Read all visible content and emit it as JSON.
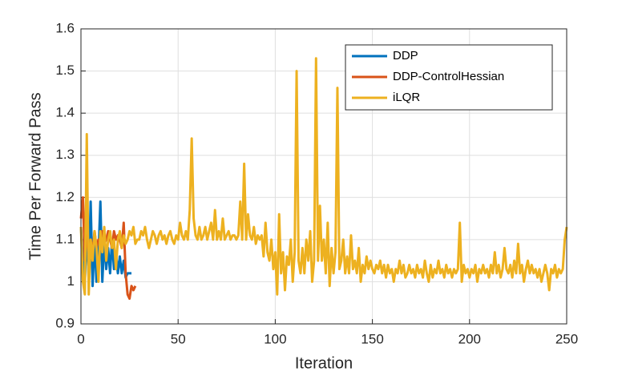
{
  "chart_data": {
    "type": "line",
    "xlabel": "Iteration",
    "ylabel": "Time Per Forward Pass",
    "xlim": [
      0,
      250
    ],
    "ylim": [
      0.9,
      1.6
    ],
    "xticks": [
      0,
      50,
      100,
      150,
      200,
      250
    ],
    "yticks": [
      0.9,
      1,
      1.1,
      1.2,
      1.3,
      1.4,
      1.5,
      1.6
    ],
    "grid": true,
    "legend": "upper right",
    "series": [
      {
        "name": "DDP",
        "color": "#0072bd",
        "x": [
          0,
          1,
          2,
          3,
          4,
          5,
          6,
          7,
          8,
          9,
          10,
          11,
          12,
          13,
          14,
          15,
          16,
          17,
          18,
          19,
          20,
          21,
          22,
          23,
          24,
          25,
          26
        ],
        "values": [
          1.13,
          1.05,
          1.0,
          1.13,
          1.0,
          1.19,
          0.99,
          1.1,
          1.0,
          1.06,
          1.19,
          1.0,
          1.1,
          1.03,
          1.08,
          1.02,
          1.1,
          1.03,
          1.07,
          1.02,
          1.06,
          1.02,
          1.05,
          1.01,
          1.02,
          1.02,
          1.02
        ]
      },
      {
        "name": "DDP-ControlHessian",
        "color": "#d95319",
        "x": [
          0,
          1,
          2,
          3,
          4,
          5,
          6,
          7,
          8,
          9,
          10,
          11,
          12,
          13,
          14,
          15,
          16,
          17,
          18,
          19,
          20,
          21,
          22,
          23,
          24,
          25,
          26,
          27,
          28
        ],
        "values": [
          1.15,
          1.2,
          1.05,
          1.12,
          1.08,
          1.1,
          1.07,
          1.12,
          1.08,
          1.1,
          1.1,
          1.12,
          1.09,
          1.1,
          1.12,
          1.1,
          1.08,
          1.12,
          1.1,
          1.11,
          1.1,
          1.08,
          1.14,
          1.02,
          0.97,
          0.96,
          0.99,
          0.98,
          0.99
        ]
      },
      {
        "name": "iLQR",
        "color": "#edb120",
        "x": [
          0,
          1,
          2,
          3,
          4,
          5,
          6,
          7,
          8,
          9,
          10,
          11,
          12,
          13,
          14,
          15,
          16,
          17,
          18,
          19,
          20,
          21,
          22,
          23,
          24,
          25,
          26,
          27,
          28,
          29,
          30,
          31,
          32,
          33,
          34,
          35,
          36,
          37,
          38,
          39,
          40,
          41,
          42,
          43,
          44,
          45,
          46,
          47,
          48,
          49,
          50,
          51,
          52,
          53,
          54,
          55,
          56,
          57,
          58,
          59,
          60,
          61,
          62,
          63,
          64,
          65,
          66,
          67,
          68,
          69,
          70,
          71,
          72,
          73,
          74,
          75,
          76,
          77,
          78,
          79,
          80,
          81,
          82,
          83,
          84,
          85,
          86,
          87,
          88,
          89,
          90,
          91,
          92,
          93,
          94,
          95,
          96,
          97,
          98,
          99,
          100,
          101,
          102,
          103,
          104,
          105,
          106,
          107,
          108,
          109,
          110,
          111,
          112,
          113,
          114,
          115,
          116,
          117,
          118,
          119,
          120,
          121,
          122,
          123,
          124,
          125,
          126,
          127,
          128,
          129,
          130,
          131,
          132,
          133,
          134,
          135,
          136,
          137,
          138,
          139,
          140,
          141,
          142,
          143,
          144,
          145,
          146,
          147,
          148,
          149,
          150,
          151,
          152,
          153,
          154,
          155,
          156,
          157,
          158,
          159,
          160,
          161,
          162,
          163,
          164,
          165,
          166,
          167,
          168,
          169,
          170,
          171,
          172,
          173,
          174,
          175,
          176,
          177,
          178,
          179,
          180,
          181,
          182,
          183,
          184,
          185,
          186,
          187,
          188,
          189,
          190,
          191,
          192,
          193,
          194,
          195,
          196,
          197,
          198,
          199,
          200,
          201,
          202,
          203,
          204,
          205,
          206,
          207,
          208,
          209,
          210,
          211,
          212,
          213,
          214,
          215,
          216,
          217,
          218,
          219,
          220,
          221,
          222,
          223,
          224,
          225,
          226,
          227,
          228,
          229,
          230,
          231,
          232,
          233,
          234,
          235,
          236,
          237,
          238,
          239,
          240,
          241,
          242,
          243,
          244,
          245,
          246,
          247,
          248,
          249,
          250
        ],
        "values": [
          1.13,
          1.0,
          0.97,
          1.35,
          0.97,
          1.1,
          1.05,
          1.12,
          1.08,
          1.0,
          1.12,
          1.07,
          1.13,
          1.05,
          1.1,
          1.12,
          1.08,
          1.1,
          1.03,
          1.1,
          1.12,
          1.08,
          1.11,
          1.09,
          1.1,
          1.12,
          1.11,
          1.13,
          1.09,
          1.1,
          1.1,
          1.12,
          1.11,
          1.13,
          1.1,
          1.08,
          1.1,
          1.12,
          1.11,
          1.09,
          1.11,
          1.12,
          1.1,
          1.11,
          1.09,
          1.11,
          1.12,
          1.1,
          1.09,
          1.11,
          1.1,
          1.14,
          1.11,
          1.1,
          1.12,
          1.1,
          1.17,
          1.34,
          1.15,
          1.11,
          1.1,
          1.13,
          1.1,
          1.11,
          1.13,
          1.1,
          1.12,
          1.14,
          1.1,
          1.17,
          1.1,
          1.12,
          1.1,
          1.15,
          1.1,
          1.11,
          1.12,
          1.1,
          1.11,
          1.11,
          1.1,
          1.11,
          1.19,
          1.1,
          1.28,
          1.1,
          1.16,
          1.11,
          1.1,
          1.13,
          1.09,
          1.11,
          1.1,
          1.11,
          1.06,
          1.14,
          1.07,
          1.05,
          1.1,
          1.03,
          1.07,
          0.97,
          1.16,
          1.02,
          1.07,
          0.98,
          1.06,
          1.04,
          1.1,
          1.0,
          1.07,
          1.5,
          1.05,
          1.02,
          1.08,
          1.02,
          1.1,
          1.05,
          1.12,
          1.0,
          1.05,
          1.53,
          1.05,
          1.18,
          1.05,
          1.1,
          1.02,
          1.14,
          0.99,
          1.08,
          1.02,
          1.07,
          1.46,
          1.03,
          1.05,
          1.1,
          1.02,
          1.06,
          1.02,
          1.11,
          1.03,
          1.05,
          1.02,
          1.08,
          1.0,
          1.04,
          1.02,
          1.06,
          1.03,
          1.05,
          1.03,
          1.02,
          1.04,
          1.03,
          1.05,
          1.02,
          1.04,
          1.01,
          1.04,
          1.02,
          1.03,
          1.0,
          1.03,
          1.02,
          1.05,
          1.02,
          1.04,
          1.01,
          1.02,
          1.04,
          1.02,
          1.03,
          1.01,
          1.04,
          1.02,
          1.03,
          1.01,
          1.05,
          1.02,
          1.0,
          1.04,
          1.01,
          1.03,
          1.02,
          1.05,
          1.02,
          1.03,
          1.01,
          1.04,
          1.02,
          1.03,
          1.01,
          1.03,
          1.02,
          1.03,
          1.14,
          1.0,
          1.04,
          1.02,
          1.03,
          1.01,
          1.03,
          1.02,
          1.04,
          1.0,
          1.03,
          1.02,
          1.04,
          1.02,
          1.03,
          1.01,
          1.04,
          1.02,
          1.07,
          1.02,
          1.04,
          1.01,
          1.03,
          1.08,
          1.03,
          1.02,
          1.04,
          1.01,
          1.05,
          1.02,
          1.09,
          1.02,
          1.04,
          1.0,
          1.03,
          1.05,
          1.02,
          1.04,
          1.02,
          1.03,
          1.01,
          1.03,
          1.0,
          1.02,
          1.04,
          1.02,
          0.98,
          1.03,
          1.02,
          1.04,
          1.01,
          1.03,
          1.02,
          1.03,
          1.1,
          1.13
        ]
      }
    ]
  }
}
